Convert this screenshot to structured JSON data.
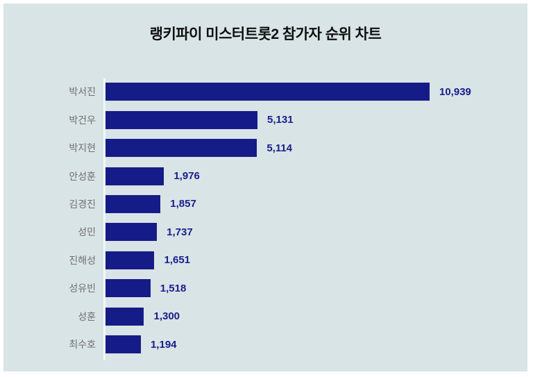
{
  "title": "랭키파이 미스터트롯2 참가자 순위 차트",
  "colors": {
    "page_background": "#ffffff",
    "panel_background": "#d9e4e6",
    "bar": "#151c87",
    "value_label": "#181d8c",
    "category_label": "#707070",
    "title_text": "#0f0f0f",
    "axis_line": "#f3f8f8"
  },
  "chart_data": {
    "type": "bar",
    "orientation": "horizontal",
    "title": "랭키파이 미스터트롯2 참가자 순위 차트",
    "categories": [
      "박서진",
      "박건우",
      "박지현",
      "안성훈",
      "김경진",
      "성민",
      "진해성",
      "성유빈",
      "성훈",
      "최수호"
    ],
    "values": [
      10939,
      5131,
      5114,
      1976,
      1857,
      1737,
      1651,
      1518,
      1300,
      1194
    ],
    "value_labels": [
      "10,939",
      "5,131",
      "5,114",
      "1,976",
      "1,857",
      "1,737",
      "1,651",
      "1,518",
      "1,300",
      "1,194"
    ],
    "xlim": [
      0,
      10939
    ],
    "grid": false,
    "legend": false,
    "value_labels_position": "end-of-bar",
    "category_labels_position": "left-of-axis"
  }
}
